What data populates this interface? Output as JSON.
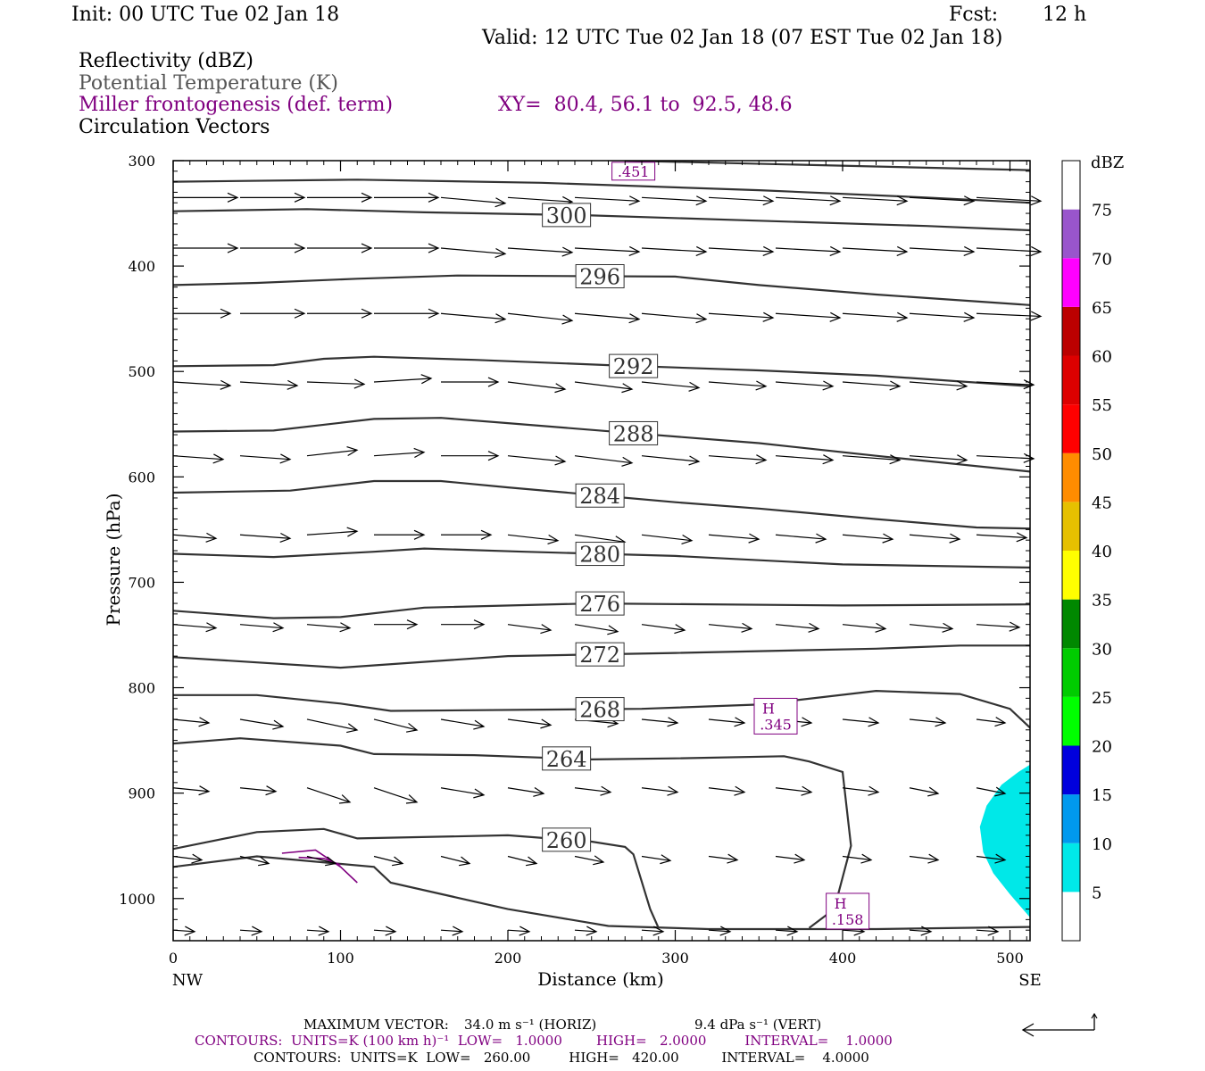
{
  "header": {
    "init": "Init: 00 UTC Tue 02 Jan 18",
    "fcst_label": "Fcst:",
    "fcst_value": "12 h",
    "valid": "Valid: 12 UTC Tue 02 Jan 18 (07 EST Tue 02 Jan 18)"
  },
  "legend": {
    "line1": "Reflectivity (dBZ)",
    "line2": "Potential Temperature (K)",
    "line3": "Miller frontogenesis (def. term)",
    "xy": "XY=  80.4, 56.1 to  92.5, 48.6",
    "line4": "Circulation Vectors"
  },
  "footer": {
    "max_vector_label": "MAXIMUM VECTOR:",
    "max_horiz": "34.0 m s⁻¹ (HORIZ)",
    "max_vert": "9.4 dPa s⁻¹ (VERT)",
    "contours1": "CONTOURS:  UNITS=K (100 km h)⁻¹  LOW=   1.0000        HIGH=   2.0000         INTERVAL=    1.0000",
    "contours2": "CONTOURS:  UNITS=K  LOW=   260.00         HIGH=   420.00          INTERVAL=    4.0000"
  },
  "colors": {
    "theta": "#333333",
    "frontogenesis": "#800080",
    "reflectivity_5": "#00e8e8"
  },
  "chart_data": {
    "type": "cross-section",
    "xlabel": "Distance (km)",
    "ylabel": "Pressure (hPa)",
    "xlim": [
      0,
      512
    ],
    "ylim": [
      1040,
      300
    ],
    "x_ticks": [
      0,
      100,
      200,
      300,
      400,
      500
    ],
    "y_ticks": [
      300,
      400,
      500,
      600,
      700,
      800,
      900,
      1000
    ],
    "x_end_labels": {
      "left": "NW",
      "right": "SE"
    },
    "colorbar": {
      "unit": "dBZ",
      "levels": [
        5,
        10,
        15,
        20,
        25,
        30,
        35,
        40,
        45,
        50,
        55,
        60,
        65,
        70,
        75
      ],
      "colors": [
        "#00e8e8",
        "#0099ee",
        "#0000dd",
        "#00ff00",
        "#00cc00",
        "#008800",
        "#ffff00",
        "#e6c000",
        "#ff8c00",
        "#ff0000",
        "#dd0000",
        "#bb0000",
        "#ff00ff",
        "#9955cc",
        "#ffffff"
      ]
    },
    "theta_contours": [
      {
        "label": "",
        "points": [
          [
            270,
            300
          ],
          [
            512,
            309
          ]
        ]
      },
      {
        "label": "",
        "points": [
          [
            0,
            320
          ],
          [
            110,
            318
          ],
          [
            220,
            321
          ],
          [
            350,
            328
          ],
          [
            450,
            335
          ],
          [
            512,
            340
          ]
        ]
      },
      {
        "label": "300",
        "points": [
          [
            0,
            348
          ],
          [
            80,
            346
          ],
          [
            150,
            349
          ],
          [
            250,
            352
          ],
          [
            350,
            357
          ],
          [
            450,
            362
          ],
          [
            512,
            366
          ]
        ]
      },
      {
        "label": "296",
        "points": [
          [
            0,
            418
          ],
          [
            50,
            416
          ],
          [
            110,
            412
          ],
          [
            170,
            409
          ],
          [
            300,
            410
          ],
          [
            350,
            418
          ],
          [
            420,
            427
          ],
          [
            512,
            437
          ]
        ]
      },
      {
        "label": "292",
        "points": [
          [
            0,
            495
          ],
          [
            60,
            494
          ],
          [
            90,
            488
          ],
          [
            120,
            486
          ],
          [
            180,
            489
          ],
          [
            260,
            494
          ],
          [
            350,
            499
          ],
          [
            420,
            504
          ],
          [
            512,
            514
          ]
        ]
      },
      {
        "label": "288",
        "points": [
          [
            0,
            557
          ],
          [
            60,
            556
          ],
          [
            120,
            545
          ],
          [
            160,
            544
          ],
          [
            200,
            549
          ],
          [
            270,
            558
          ],
          [
            350,
            568
          ],
          [
            420,
            580
          ],
          [
            512,
            595
          ]
        ]
      },
      {
        "label": "284",
        "points": [
          [
            0,
            615
          ],
          [
            70,
            613
          ],
          [
            120,
            604
          ],
          [
            160,
            604
          ],
          [
            200,
            610
          ],
          [
            250,
            617
          ],
          [
            300,
            624
          ],
          [
            350,
            630
          ],
          [
            420,
            640
          ],
          [
            480,
            648
          ],
          [
            512,
            649
          ]
        ]
      },
      {
        "label": "280",
        "points": [
          [
            0,
            673
          ],
          [
            60,
            676
          ],
          [
            120,
            671
          ],
          [
            150,
            668
          ],
          [
            210,
            671
          ],
          [
            300,
            675
          ],
          [
            400,
            683
          ],
          [
            512,
            686
          ]
        ]
      },
      {
        "label": "276",
        "points": [
          [
            0,
            727
          ],
          [
            60,
            734
          ],
          [
            100,
            733
          ],
          [
            150,
            724
          ],
          [
            250,
            720
          ],
          [
            400,
            722
          ],
          [
            512,
            721
          ]
        ]
      },
      {
        "label": "272",
        "points": [
          [
            0,
            771
          ],
          [
            100,
            781
          ],
          [
            200,
            770
          ],
          [
            300,
            767
          ],
          [
            420,
            763
          ],
          [
            470,
            760
          ],
          [
            512,
            760
          ]
        ]
      },
      {
        "label": "268",
        "points": [
          [
            0,
            807
          ],
          [
            50,
            807
          ],
          [
            100,
            815
          ],
          [
            130,
            822
          ],
          [
            280,
            820
          ],
          [
            350,
            816
          ],
          [
            420,
            803
          ],
          [
            470,
            806
          ],
          [
            500,
            820
          ],
          [
            512,
            838
          ]
        ]
      },
      {
        "label": "264",
        "points": [
          [
            0,
            853
          ],
          [
            40,
            848
          ],
          [
            100,
            855
          ],
          [
            120,
            863
          ],
          [
            180,
            864
          ],
          [
            250,
            868
          ],
          [
            300,
            867
          ],
          [
            365,
            865
          ],
          [
            380,
            870
          ],
          [
            400,
            880
          ],
          [
            405,
            950
          ],
          [
            395,
            1010
          ],
          [
            380,
            1028
          ]
        ]
      },
      {
        "label": "260",
        "points": [
          [
            0,
            953
          ],
          [
            50,
            937
          ],
          [
            90,
            934
          ],
          [
            110,
            943
          ],
          [
            200,
            940
          ],
          [
            250,
            946
          ],
          [
            270,
            951
          ],
          [
            275,
            958
          ],
          [
            285,
            1010
          ],
          [
            290,
            1028
          ]
        ]
      },
      {
        "label": "",
        "points": [
          [
            0,
            970
          ],
          [
            50,
            960
          ],
          [
            120,
            970
          ],
          [
            130,
            985
          ],
          [
            200,
            1010
          ],
          [
            260,
            1026
          ],
          [
            320,
            1029
          ],
          [
            420,
            1029
          ],
          [
            512,
            1027
          ]
        ]
      }
    ],
    "frontogenesis": {
      "contours": [
        [
          [
            65,
            957
          ],
          [
            85,
            954
          ],
          [
            100,
            970
          ],
          [
            110,
            985
          ]
        ],
        [
          [
            75,
            961
          ],
          [
            90,
            962
          ],
          [
            100,
            968
          ]
        ]
      ],
      "maxima": [
        {
          "label": "H",
          "value": ".345",
          "x": 360,
          "p": 827
        },
        {
          "label": "H",
          "value": ".158",
          "x": 403,
          "p": 1012
        },
        {
          "label": "",
          "value": ".451",
          "x": 275,
          "p": 310
        }
      ]
    },
    "reflectivity_region": {
      "dbz": 5,
      "points": [
        [
          512,
          873
        ],
        [
          505,
          880
        ],
        [
          495,
          892
        ],
        [
          486,
          912
        ],
        [
          482,
          932
        ],
        [
          484,
          956
        ],
        [
          490,
          976
        ],
        [
          500,
          996
        ],
        [
          512,
          1018
        ]
      ]
    },
    "vectors": {
      "columns_km": [
        0,
        40,
        80,
        120,
        160,
        200,
        240,
        280,
        320,
        360,
        400,
        440,
        480
      ],
      "rows_hpa": [
        335,
        383,
        445,
        510,
        580,
        655,
        740,
        830,
        895,
        960,
        1030
      ],
      "u": [
        [
          0.9,
          0.9,
          0.9,
          0.9,
          0.9,
          0.9,
          0.9,
          0.9,
          0.9,
          0.9,
          0.9,
          0.9,
          0.9
        ],
        [
          0.9,
          0.9,
          0.9,
          0.9,
          0.9,
          0.9,
          0.9,
          0.9,
          0.9,
          0.9,
          0.9,
          0.9,
          0.9
        ],
        [
          0.8,
          0.9,
          0.9,
          0.9,
          0.9,
          0.9,
          0.9,
          0.9,
          0.9,
          0.9,
          0.9,
          0.9,
          0.9
        ],
        [
          0.8,
          0.8,
          0.8,
          0.8,
          0.8,
          0.8,
          0.8,
          0.8,
          0.8,
          0.8,
          0.8,
          0.8,
          0.8
        ],
        [
          0.7,
          0.7,
          0.7,
          0.7,
          0.8,
          0.8,
          0.8,
          0.8,
          0.8,
          0.8,
          0.8,
          0.8,
          0.8
        ],
        [
          0.6,
          0.7,
          0.7,
          0.7,
          0.7,
          0.7,
          0.7,
          0.7,
          0.7,
          0.7,
          0.7,
          0.7,
          0.7
        ],
        [
          0.6,
          0.6,
          0.6,
          0.6,
          0.6,
          0.6,
          0.6,
          0.6,
          0.6,
          0.6,
          0.6,
          0.6,
          0.6
        ],
        [
          0.5,
          0.6,
          0.7,
          0.6,
          0.6,
          0.6,
          0.6,
          0.5,
          0.5,
          0.5,
          0.5,
          0.5,
          0.4
        ],
        [
          0.5,
          0.5,
          0.6,
          0.6,
          0.6,
          0.5,
          0.5,
          0.5,
          0.5,
          0.5,
          0.5,
          0.4,
          0.4
        ],
        [
          0.4,
          0.4,
          0.4,
          0.4,
          0.4,
          0.4,
          0.4,
          0.4,
          0.4,
          0.4,
          0.4,
          0.4,
          0.4
        ],
        [
          0.3,
          0.3,
          0.3,
          0.3,
          0.3,
          0.3,
          0.3,
          0.3,
          0.3,
          0.3,
          0.3,
          0.3,
          0.3
        ]
      ],
      "w": [
        [
          0,
          0,
          0,
          0,
          0.08,
          0.06,
          0.05,
          0.05,
          0.05,
          0.05,
          0.05,
          0.05,
          0.05
        ],
        [
          0,
          0,
          0,
          0,
          0.08,
          0.06,
          0.05,
          0.05,
          0.05,
          0.05,
          0.05,
          0.05,
          0.05
        ],
        [
          0,
          0,
          0,
          0,
          0.08,
          0.1,
          0.08,
          0.08,
          0.06,
          0.06,
          0.06,
          0.06,
          0.04
        ],
        [
          0.05,
          0.05,
          0.03,
          -0.05,
          0,
          0.1,
          0.1,
          0.08,
          0.06,
          0.06,
          0.06,
          0.06,
          0.04
        ],
        [
          0.05,
          0.05,
          -0.08,
          -0.05,
          0,
          0.08,
          0.1,
          0.08,
          0.06,
          0.06,
          0.06,
          0.06,
          0.04
        ],
        [
          0.05,
          0.05,
          -0.05,
          0,
          0,
          0.08,
          0.1,
          0.08,
          0.06,
          0.06,
          0.06,
          0.06,
          0.04
        ],
        [
          0.05,
          0.05,
          0.05,
          0,
          0,
          0.08,
          0.1,
          0.08,
          0.06,
          0.06,
          0.06,
          0.06,
          0.04
        ],
        [
          0.05,
          0.1,
          0.15,
          0.15,
          0.1,
          0.08,
          0.06,
          0.05,
          0.05,
          0.05,
          0.05,
          0.05,
          0.05
        ],
        [
          0.05,
          0.05,
          0.2,
          0.2,
          0.1,
          0.08,
          0.06,
          0.06,
          0.06,
          0.06,
          0.06,
          0.08,
          0.08
        ],
        [
          0.05,
          0.1,
          0.1,
          0.1,
          0.1,
          0.1,
          0.08,
          0.06,
          0.05,
          0.05,
          0.05,
          0.05,
          0.05
        ],
        [
          0.02,
          0.02,
          0.02,
          0.02,
          0.02,
          0.02,
          0.02,
          0.02,
          0.02,
          0.02,
          0.02,
          0.02,
          0.02
        ]
      ]
    }
  }
}
